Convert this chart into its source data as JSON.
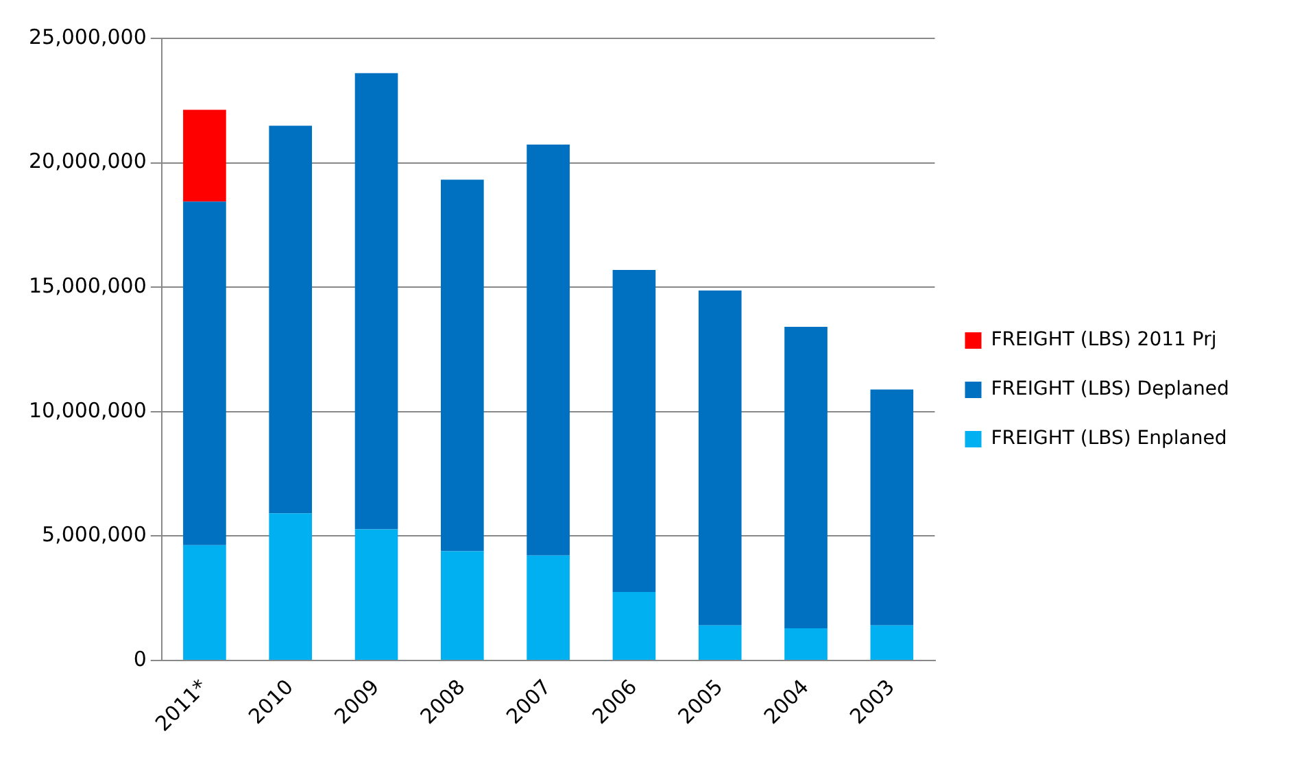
{
  "chart_data": {
    "type": "bar",
    "stacked": true,
    "categories": [
      "2011*",
      "2010",
      "2009",
      "2008",
      "2007",
      "2006",
      "2005",
      "2004",
      "2003"
    ],
    "series": [
      {
        "name": "FREIGHT (LBS) Enplaned",
        "color": "#00b0f0",
        "values": [
          4630000,
          5910000,
          5270000,
          4390000,
          4220000,
          2750000,
          1410000,
          1290000,
          1410000
        ]
      },
      {
        "name": "FREIGHT (LBS) Deplaned",
        "color": "#0070c0",
        "values": [
          13810000,
          15580000,
          18330000,
          14930000,
          16510000,
          12940000,
          13460000,
          12120000,
          9480000
        ]
      },
      {
        "name": "FREIGHT (LBS) 2011 Prj",
        "color": "#ff0000",
        "values": [
          3690000,
          null,
          null,
          null,
          null,
          null,
          null,
          null,
          null
        ]
      }
    ],
    "ylim": [
      0,
      25000000
    ],
    "yticks": [
      0,
      {
        "value": 5000000,
        "label": "5,000,000"
      },
      {
        "value": 10000000,
        "label": "10,000,000"
      },
      {
        "value": 15000000,
        "label": "15,000,000"
      },
      {
        "value": 20000000,
        "label": "20,000,000"
      },
      {
        "value": 25000000,
        "label": "25,000,000"
      }
    ],
    "grid": "y",
    "legend": "right"
  }
}
